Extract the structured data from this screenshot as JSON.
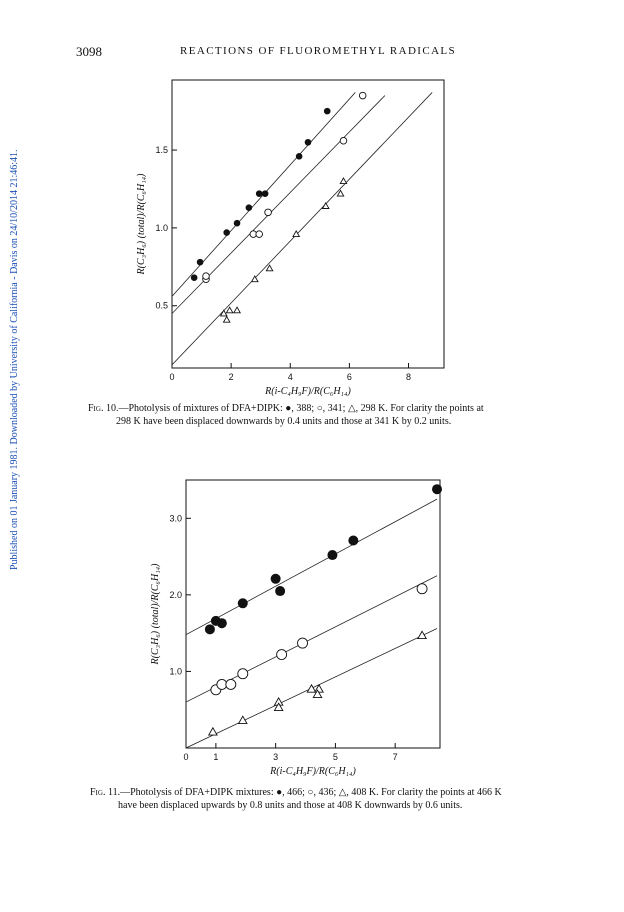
{
  "side_note": "Published on 01 January 1981. Downloaded by University of California - Davis on 24/10/2014 21:46:41.",
  "header": {
    "page_number": "3098",
    "running_title": "REACTIONS OF FLUOROMETHYL RADICALS"
  },
  "chart_data": [
    {
      "type": "scatter",
      "id": "fig10",
      "xlabel": "R(i-C₄H₉F)/R(C₆H₁₄)",
      "ylabel": "R(C₃H₆) (total)/R(C₆H₁₄)",
      "xlim": [
        0,
        9.2
      ],
      "ylim": [
        0.1,
        1.95
      ],
      "x_ticks": [
        0,
        2,
        4,
        6,
        8
      ],
      "y_ticks": [
        0.5,
        1.0,
        1.5
      ],
      "x_tick_labels": [
        "0",
        "2",
        "4",
        "6",
        "8"
      ],
      "y_tick_labels": [
        "0.5",
        "1.0",
        "1.5"
      ],
      "grid": false,
      "series": [
        {
          "name": "388",
          "marker": "filled-circle",
          "points": [
            [
              0.75,
              0.68
            ],
            [
              0.95,
              0.78
            ],
            [
              1.85,
              0.97
            ],
            [
              2.2,
              1.03
            ],
            [
              2.6,
              1.13
            ],
            [
              2.95,
              1.22
            ],
            [
              3.15,
              1.22
            ],
            [
              4.3,
              1.46
            ],
            [
              4.6,
              1.55
            ],
            [
              5.25,
              1.75
            ]
          ],
          "fit": [
            [
              0,
              0.56
            ],
            [
              6.2,
              1.87
            ]
          ]
        },
        {
          "name": "341",
          "marker": "open-circle",
          "points": [
            [
              1.15,
              0.67
            ],
            [
              1.15,
              0.69
            ],
            [
              2.75,
              0.96
            ],
            [
              2.95,
              0.96
            ],
            [
              3.25,
              1.1
            ],
            [
              5.8,
              1.56
            ],
            [
              6.45,
              1.85
            ]
          ],
          "fit": [
            [
              0,
              0.45
            ],
            [
              7.2,
              1.85
            ]
          ]
        },
        {
          "name": "298",
          "marker": "open-triangle",
          "points": [
            [
              1.75,
              0.45
            ],
            [
              1.95,
              0.47
            ],
            [
              2.2,
              0.47
            ],
            [
              1.85,
              0.41
            ],
            [
              2.8,
              0.67
            ],
            [
              3.3,
              0.74
            ],
            [
              4.2,
              0.96
            ],
            [
              5.2,
              1.14
            ],
            [
              5.7,
              1.22
            ],
            [
              5.8,
              1.3
            ]
          ],
          "fit": [
            [
              0,
              0.12
            ],
            [
              8.8,
              1.87
            ]
          ]
        }
      ]
    },
    {
      "type": "scatter",
      "id": "fig11",
      "xlabel": "R(i-C₄H₉F)/R(C₆H₁₄)",
      "ylabel": "R(C₃H₆) (total)/R(C₆H₁₄)",
      "xlim": [
        0,
        8.5
      ],
      "ylim": [
        0,
        3.5
      ],
      "x_ticks": [
        0,
        1,
        3,
        5,
        7
      ],
      "y_ticks": [
        1.0,
        2.0,
        3.0
      ],
      "x_tick_labels": [
        "0",
        "1",
        "3",
        "5",
        "7"
      ],
      "y_tick_labels": [
        "1.0",
        "2.0",
        "3.0"
      ],
      "grid": false,
      "series": [
        {
          "name": "466",
          "marker": "filled-circle",
          "points": [
            [
              0.8,
              1.55
            ],
            [
              1.0,
              1.66
            ],
            [
              1.2,
              1.63
            ],
            [
              1.9,
              1.89
            ],
            [
              3.0,
              2.21
            ],
            [
              3.15,
              2.05
            ],
            [
              4.9,
              2.52
            ],
            [
              5.6,
              2.71
            ],
            [
              8.4,
              3.38
            ]
          ],
          "fit": [
            [
              0,
              1.48
            ],
            [
              8.4,
              3.25
            ]
          ]
        },
        {
          "name": "436",
          "marker": "open-circle",
          "points": [
            [
              1.0,
              0.76
            ],
            [
              1.2,
              0.83
            ],
            [
              1.5,
              0.83
            ],
            [
              1.9,
              0.97
            ],
            [
              3.2,
              1.22
            ],
            [
              3.9,
              1.37
            ],
            [
              7.9,
              2.08
            ]
          ],
          "fit": [
            [
              0,
              0.6
            ],
            [
              8.4,
              2.25
            ]
          ]
        },
        {
          "name": "408",
          "marker": "open-triangle",
          "points": [
            [
              0.9,
              0.21
            ],
            [
              1.9,
              0.36
            ],
            [
              3.1,
              0.6
            ],
            [
              3.1,
              0.53
            ],
            [
              4.2,
              0.77
            ],
            [
              4.45,
              0.77
            ],
            [
              4.4,
              0.7
            ],
            [
              7.9,
              1.47
            ]
          ],
          "fit": [
            [
              0,
              0.0
            ],
            [
              8.4,
              1.56
            ]
          ]
        }
      ]
    }
  ],
  "captions": {
    "fig10": {
      "label": "Fig. 10.",
      "line1": "—Photolysis of mixtures of DFA+DIPK: ●, 388; ○, 341; △, 298 K. For clarity the points at",
      "line2": "298 K have been displaced downwards by 0.4 units and those at 341 K by 0.2 units."
    },
    "fig11": {
      "label": "Fig. 11.",
      "line1": "—Photolysis of DFA+DIPK mixtures: ●, 466; ○, 436; △, 408 K. For clarity the points at 466 K",
      "line2": "have been displaced upwards by 0.8 units and those at 408 K downwards by 0.6 units."
    }
  }
}
